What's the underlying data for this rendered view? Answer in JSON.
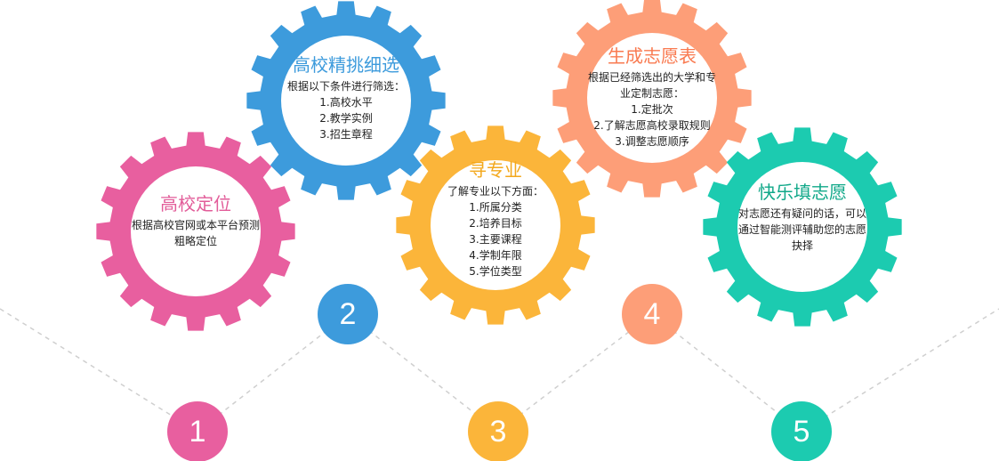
{
  "colors": {
    "pink": "#e85f9f",
    "blue": "#3d9bdc",
    "yellow": "#fbb53a",
    "salmon": "#fd9e78",
    "teal": "#1ccbb0",
    "title_pink": "#e25c99",
    "title_blue": "#3d9bdc",
    "title_yellow": "#f3a81c",
    "title_salmon": "#f97a50",
    "title_teal": "#11a889",
    "dashed_line": "#cfcfcf"
  },
  "gears": [
    {
      "id": "locate",
      "title": "高校定位",
      "description": [
        "根据高校官网或本平台预测",
        "粗略定位"
      ],
      "items": []
    },
    {
      "id": "screen",
      "title": "高校精挑细选",
      "description": [
        "根据以下条件进行筛选："
      ],
      "items": [
        "1.高校水平",
        "2.教学实例",
        "3.招生章程"
      ]
    },
    {
      "id": "major",
      "title": "寻专业",
      "description": [
        "了解专业以下方面："
      ],
      "items": [
        "1.所属分类",
        "2.培养目标",
        "3.主要课程",
        "4.学制年限",
        "5.学位类型"
      ]
    },
    {
      "id": "generate",
      "title": "生成志愿表",
      "description": [
        "根据已经筛选出的大学和专",
        "业定制志愿："
      ],
      "items": [
        "1.定批次",
        "2.了解志愿高校录取规则",
        "3.调整志愿顺序"
      ]
    },
    {
      "id": "fill",
      "title": "快乐填志愿",
      "description": [
        "对志愿还有疑问的话，可以",
        "通过智能测评辅助您的志愿",
        "抉择"
      ],
      "items": []
    }
  ],
  "steps": [
    "1",
    "2",
    "3",
    "4",
    "5"
  ]
}
